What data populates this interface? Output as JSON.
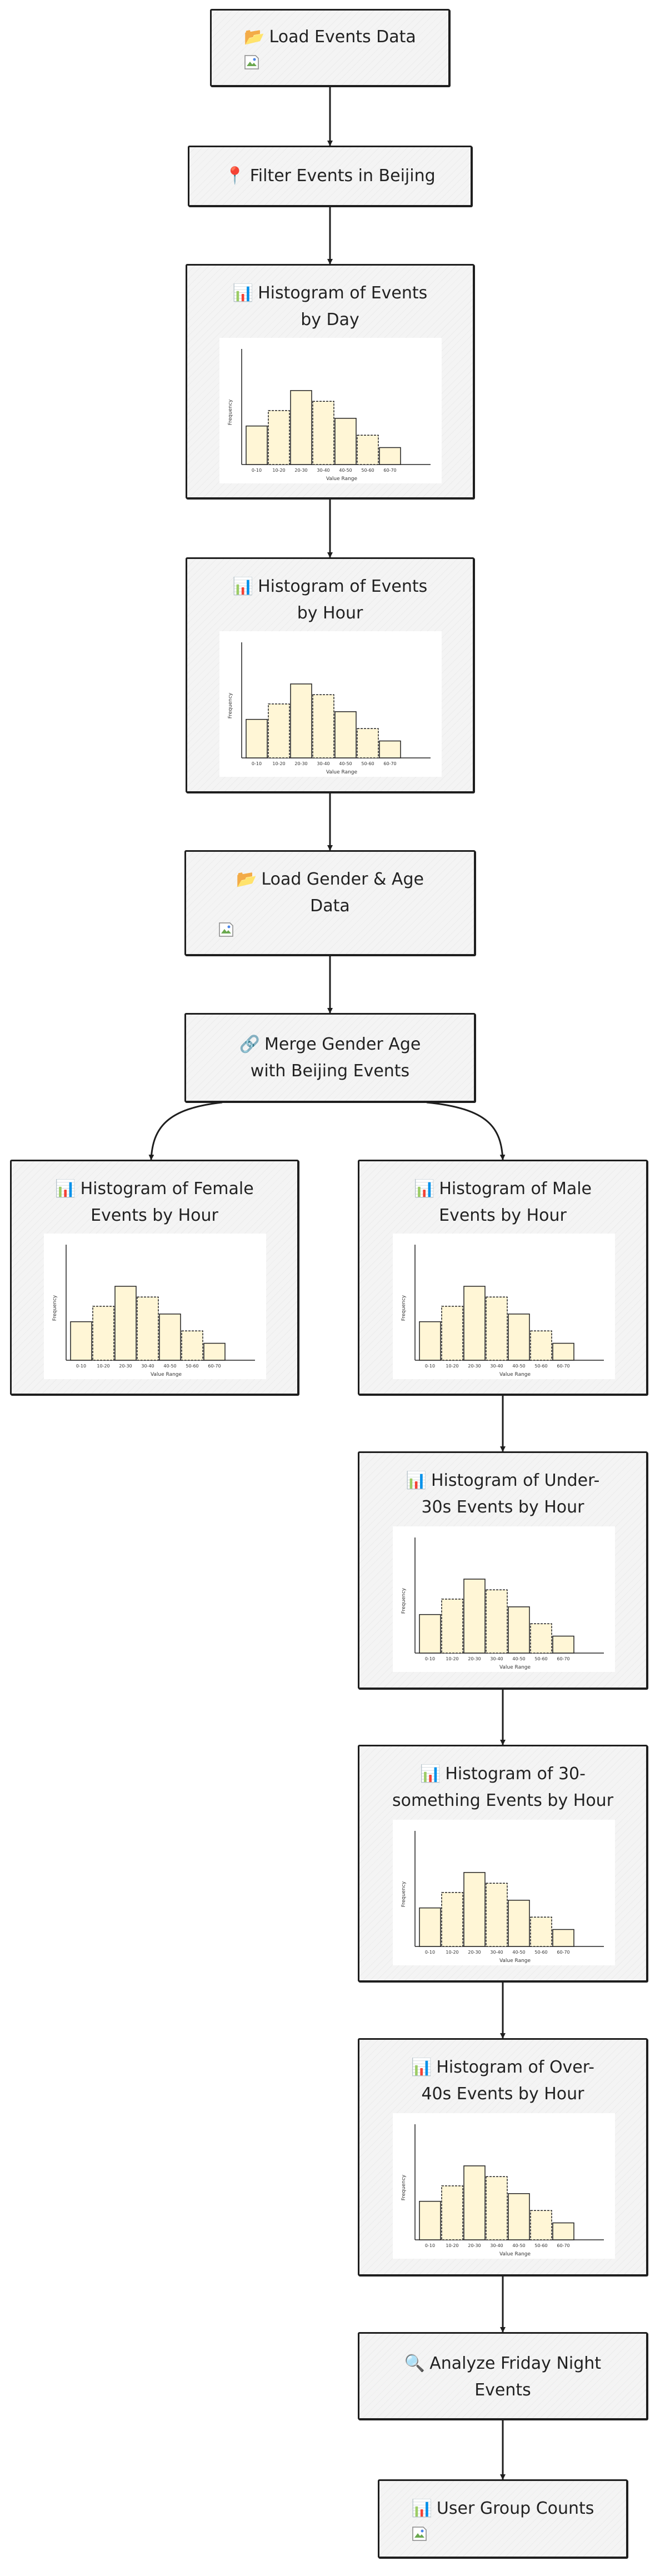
{
  "nodes": {
    "load_events": {
      "icon": "📂",
      "title": "Load Events Data"
    },
    "filter_beijing": {
      "icon": "📍",
      "title": "Filter Events in Beijing"
    },
    "hist_day": {
      "icon": "📊",
      "title_l1": "Histogram of Events",
      "title_l2": "by Day"
    },
    "hist_hour": {
      "icon": "📊",
      "title_l1": "Histogram of Events",
      "title_l2": "by Hour"
    },
    "load_gender_age": {
      "icon": "📂",
      "title_l1": "Load Gender & Age",
      "title_l2": "Data"
    },
    "merge": {
      "icon": "🔗",
      "title_l1": "Merge Gender Age",
      "title_l2": "with Beijing Events"
    },
    "hist_female": {
      "icon": "📊",
      "title_l1": "Histogram of Female",
      "title_l2": "Events by Hour"
    },
    "hist_male": {
      "icon": "📊",
      "title_l1": "Histogram of Male",
      "title_l2": "Events by Hour"
    },
    "hist_under30": {
      "icon": "📊",
      "title_l1": "Histogram of Under-",
      "title_l2": "30s Events by Hour"
    },
    "hist_30s": {
      "icon": "📊",
      "title_l1": "Histogram of 30-",
      "title_l2": "something Events by Hour"
    },
    "hist_over40": {
      "icon": "📊",
      "title_l1": "Histogram of Over-",
      "title_l2": "40s Events by Hour"
    },
    "friday": {
      "icon": "🔍",
      "title_l1": "Analyze Friday Night",
      "title_l2": "Events"
    },
    "user_groups": {
      "icon": "📊",
      "title": "User Group Counts"
    }
  },
  "chart_data": {
    "type": "bar",
    "categories": [
      "0-10",
      "10-20",
      "20-30",
      "30-40",
      "40-50",
      "50-60",
      "60-70"
    ],
    "values": [
      25,
      35,
      48,
      41,
      30,
      19,
      11
    ],
    "xlabel": "Value Range",
    "ylabel": "Frequency",
    "ylim": [
      0,
      75
    ]
  },
  "colors": {
    "bar_fill": "#fff6d6",
    "stroke": "#1e1e1e",
    "node_bg": "#f4f4f4"
  },
  "icons": {
    "broken_image": "broken-image-icon"
  }
}
